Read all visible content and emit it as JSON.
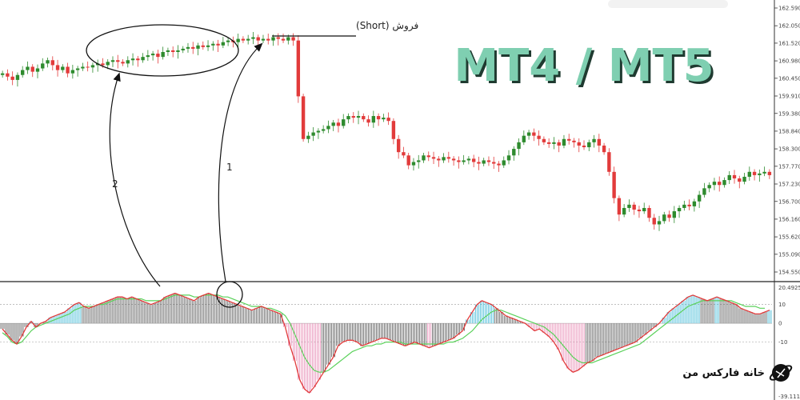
{
  "watermark": "MT4 / MT5",
  "short_label": "فروش (Short)",
  "brand": "خانه فارکس من",
  "colors": {
    "bull": "#2e8b2e",
    "bear": "#e23b3b",
    "hist_pos": "#3db8d6",
    "hist_neg": "#e88cb5",
    "hist_neutral": "#555555",
    "signal_line": "#5ad15a",
    "main_line": "#e23b3b",
    "title": "#7fcfb1"
  },
  "annotations": [
    {
      "label": "1"
    },
    {
      "label": "2"
    }
  ],
  "chart_data": [
    {
      "type": "candlestick",
      "y_ticks": [
        "162.590",
        "162.050",
        "161.520",
        "160.980",
        "160.450",
        "159.910",
        "159.380",
        "158.840",
        "158.300",
        "157.770",
        "157.230",
        "156.700",
        "156.160",
        "155.620",
        "155.090",
        "154.550"
      ],
      "ylim": [
        154.55,
        162.59
      ],
      "close": [
        160.6,
        160.5,
        160.4,
        160.55,
        160.7,
        160.8,
        160.65,
        160.75,
        160.9,
        161.0,
        160.85,
        160.7,
        160.8,
        160.6,
        160.7,
        160.75,
        160.8,
        160.78,
        160.85,
        160.9,
        160.85,
        160.95,
        161.0,
        160.95,
        160.9,
        161.0,
        161.05,
        161.0,
        161.1,
        161.15,
        161.2,
        161.1,
        161.25,
        161.3,
        161.25,
        161.3,
        161.35,
        161.4,
        161.35,
        161.45,
        161.4,
        161.45,
        161.5,
        161.45,
        161.55,
        161.6,
        161.55,
        161.65,
        161.6,
        161.65,
        161.7,
        161.6,
        161.65,
        161.6,
        161.7,
        161.65,
        161.6,
        161.7,
        161.6,
        159.9,
        158.6,
        158.7,
        158.8,
        158.85,
        158.9,
        159.0,
        159.1,
        159.0,
        159.2,
        159.3,
        159.25,
        159.3,
        159.2,
        159.1,
        159.3,
        159.2,
        159.25,
        159.15,
        158.6,
        158.2,
        158.1,
        157.8,
        157.9,
        157.95,
        158.1,
        158.05,
        158.0,
        157.95,
        158.05,
        158.0,
        157.95,
        157.9,
        157.95,
        158.0,
        157.9,
        157.85,
        157.95,
        157.9,
        157.85,
        157.8,
        157.95,
        158.1,
        158.3,
        158.5,
        158.7,
        158.8,
        158.7,
        158.6,
        158.5,
        158.45,
        158.5,
        158.4,
        158.6,
        158.55,
        158.5,
        158.4,
        158.35,
        158.5,
        158.6,
        158.4,
        158.2,
        157.6,
        156.8,
        156.3,
        156.5,
        156.6,
        156.45,
        156.4,
        156.5,
        156.2,
        156.0,
        156.1,
        156.3,
        156.2,
        156.4,
        156.5,
        156.6,
        156.55,
        156.7,
        156.9,
        157.1,
        157.2,
        157.3,
        157.2,
        157.35,
        157.5,
        157.4,
        157.3,
        157.45,
        157.6,
        157.5,
        157.55,
        157.6,
        157.5
      ],
      "range": {
        "x": [
          0,
          157
        ]
      }
    },
    {
      "type": "histogram-oscillator",
      "y_ticks": [
        "20.4925",
        "10",
        "0",
        "-10",
        "-39.1114"
      ],
      "ylim": [
        -39.1114,
        20.4925
      ],
      "levels": [
        10,
        0,
        -10
      ],
      "main": [
        -3,
        -6,
        -9,
        -11,
        -7,
        -2,
        1,
        -2,
        0,
        1,
        3,
        4,
        5,
        6,
        8,
        10,
        11,
        9,
        8,
        9,
        10,
        11,
        12,
        13,
        14,
        14,
        13,
        14,
        13,
        12,
        11,
        10,
        11,
        12,
        14,
        15,
        16,
        15,
        14,
        13,
        12,
        14,
        15,
        16,
        15,
        14,
        13,
        12,
        11,
        10,
        9,
        8,
        7,
        8,
        9,
        8,
        7,
        6,
        5,
        -2,
        -12,
        -20,
        -30,
        -35,
        -37,
        -34,
        -30,
        -26,
        -22,
        -18,
        -12,
        -10,
        -9,
        -9,
        -10,
        -12,
        -11,
        -10,
        -9,
        -8,
        -8,
        -9,
        -10,
        -11,
        -12,
        -11,
        -10,
        -11,
        -12,
        -13,
        -12,
        -11,
        -10,
        -9,
        -8,
        -6,
        -4,
        2,
        6,
        10,
        12,
        11,
        10,
        8,
        6,
        4,
        3,
        2,
        1,
        0,
        -2,
        -4,
        -3,
        -5,
        -7,
        -10,
        -14,
        -20,
        -24,
        -26,
        -25,
        -23,
        -21,
        -20,
        -18,
        -17,
        -16,
        -15,
        -14,
        -13,
        -12,
        -11,
        -10,
        -8,
        -6,
        -4,
        -2,
        0,
        3,
        6,
        8,
        10,
        12,
        14,
        15,
        14,
        13,
        12,
        13,
        14,
        13,
        12,
        11,
        10,
        8,
        7,
        6,
        5,
        5,
        6,
        7
      ],
      "signal": [
        -5,
        -7,
        -10,
        -11,
        -10,
        -7,
        -4,
        -2,
        -1,
        0,
        1,
        2,
        3,
        4,
        5,
        7,
        8,
        9,
        9,
        9,
        10,
        10,
        11,
        12,
        13,
        13,
        13,
        13,
        13,
        13,
        12,
        12,
        12,
        12,
        13,
        14,
        15,
        15,
        15,
        15,
        14,
        14,
        15,
        15,
        15,
        15,
        14,
        14,
        13,
        12,
        11,
        10,
        9,
        9,
        9,
        8,
        8,
        7,
        6,
        4,
        0,
        -6,
        -12,
        -18,
        -22,
        -25,
        -26,
        -26,
        -25,
        -23,
        -21,
        -19,
        -17,
        -15,
        -14,
        -13,
        -12,
        -12,
        -11,
        -11,
        -10,
        -10,
        -10,
        -10,
        -11,
        -11,
        -11,
        -11,
        -11,
        -11,
        -11,
        -11,
        -11,
        -10,
        -10,
        -9,
        -8,
        -6,
        -4,
        -1,
        2,
        4,
        6,
        7,
        7,
        6,
        5,
        4,
        3,
        2,
        1,
        0,
        -1,
        -2,
        -4,
        -6,
        -9,
        -12,
        -15,
        -18,
        -20,
        -21,
        -21,
        -21,
        -20,
        -19,
        -18,
        -17,
        -16,
        -15,
        -14,
        -13,
        -12,
        -11,
        -9,
        -7,
        -5,
        -3,
        -1,
        1,
        3,
        5,
        7,
        9,
        10,
        11,
        12,
        12,
        12,
        12,
        12,
        12,
        12,
        11,
        10,
        9,
        9,
        9,
        8,
        8
      ]
    }
  ]
}
